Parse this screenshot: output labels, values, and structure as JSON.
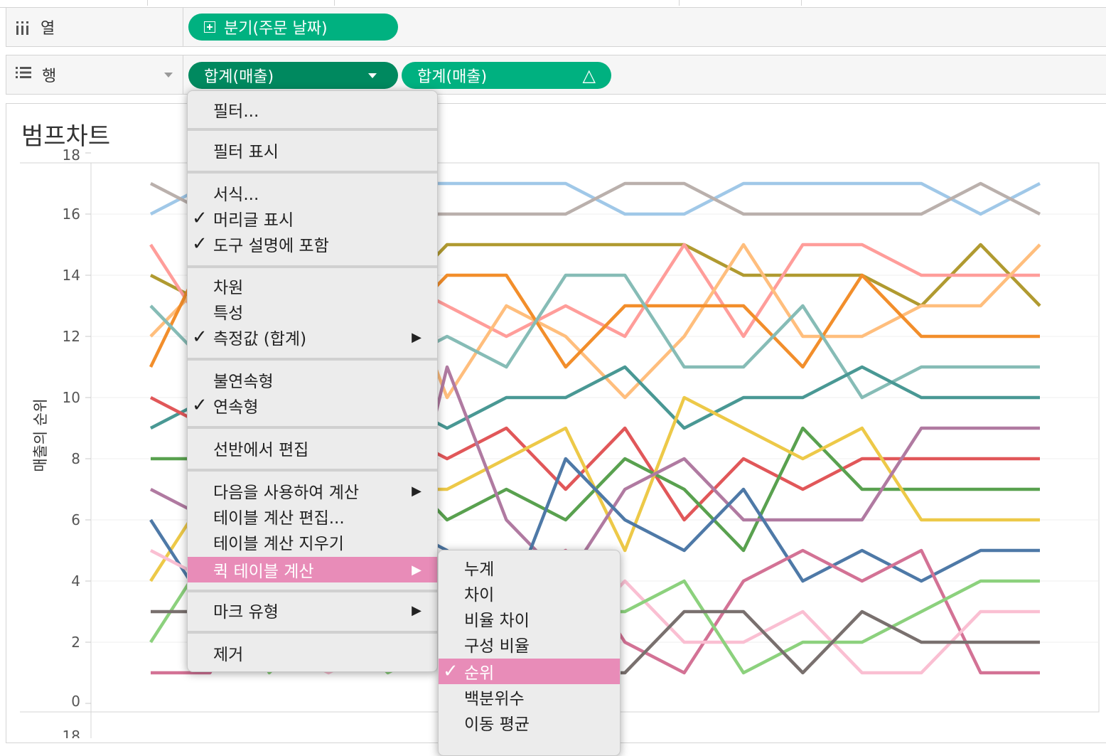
{
  "shelves": {
    "columns": {
      "label": "열",
      "icon": "columns-icon",
      "pill": "분기(주문 날짜)"
    },
    "rows": {
      "label": "행",
      "icon": "rows-icon",
      "pill1": "합계(매출)",
      "pill2": "합계(매출)",
      "pill2_mark": "△"
    }
  },
  "view": {
    "title": "범프차트",
    "ytitle": "매출의 순위",
    "next_pane_tick": "18"
  },
  "context_menu": {
    "items": [
      {
        "label": "필터...",
        "checked": false,
        "submenu": false
      },
      {
        "label": "필터 표시",
        "checked": false,
        "submenu": false
      },
      {
        "label": "서식...",
        "checked": false,
        "submenu": false
      },
      {
        "label": "머리글 표시",
        "checked": true,
        "submenu": false
      },
      {
        "label": "도구 설명에 포함",
        "checked": true,
        "submenu": false
      },
      {
        "label": "차원",
        "checked": false,
        "submenu": false
      },
      {
        "label": "특성",
        "checked": false,
        "submenu": false
      },
      {
        "label": "측정값 (합계)",
        "checked": true,
        "submenu": true
      },
      {
        "label": "불연속형",
        "checked": false,
        "submenu": false
      },
      {
        "label": "연속형",
        "checked": true,
        "submenu": false
      },
      {
        "label": "선반에서 편집",
        "checked": false,
        "submenu": false
      },
      {
        "label": "다음을 사용하여 계산",
        "checked": false,
        "submenu": true
      },
      {
        "label": "테이블 계산 편집...",
        "checked": false,
        "submenu": false
      },
      {
        "label": "테이블 계산 지우기",
        "checked": false,
        "submenu": false
      },
      {
        "label": "퀵 테이블 계산",
        "checked": false,
        "submenu": true,
        "highlighted": true
      },
      {
        "label": "마크 유형",
        "checked": false,
        "submenu": true
      },
      {
        "label": "제거",
        "checked": false,
        "submenu": false
      }
    ],
    "check_glyph": "✓",
    "arrow_glyph": "▶"
  },
  "quick_calc_submenu": {
    "items": [
      {
        "label": "누계",
        "checked": false
      },
      {
        "label": "차이",
        "checked": false
      },
      {
        "label": "비율 차이",
        "checked": false
      },
      {
        "label": "구성 비율",
        "checked": false
      },
      {
        "label": "순위",
        "checked": true,
        "highlighted": true
      },
      {
        "label": "백분위수",
        "checked": false
      },
      {
        "label": "이동 평균",
        "checked": false
      }
    ]
  },
  "chart_data": {
    "type": "line",
    "title": "범프차트",
    "xlabel": "",
    "ylabel": "매출의 순위",
    "ylim": [
      0,
      18
    ],
    "yticks": [
      "0",
      "2",
      "4",
      "6",
      "8",
      "10",
      "12",
      "14",
      "16",
      "18"
    ],
    "grid": true,
    "x": [
      1,
      2,
      3,
      4,
      5,
      6,
      7,
      8,
      9,
      10,
      11,
      12,
      13,
      14,
      15,
      16
    ],
    "series": [
      {
        "color": "#a0c8e8",
        "values": [
          16,
          17,
          17,
          17,
          17,
          17,
          17,
          17,
          16,
          16,
          17,
          17,
          17,
          17,
          16,
          17
        ]
      },
      {
        "color": "#bab0ac",
        "values": [
          17,
          16,
          16,
          16,
          16,
          16,
          16,
          16,
          17,
          17,
          16,
          16,
          16,
          16,
          17,
          16
        ]
      },
      {
        "color": "#b09a30",
        "values": [
          14,
          13,
          14,
          13,
          13,
          15,
          15,
          15,
          15,
          15,
          14,
          14,
          14,
          13,
          15,
          13
        ]
      },
      {
        "color": "#ff9d9a",
        "values": [
          15,
          12,
          13,
          12,
          14,
          13,
          12,
          13,
          12,
          15,
          12,
          15,
          15,
          14,
          14,
          14
        ]
      },
      {
        "color": "#ffbe7d",
        "values": [
          12,
          14,
          12,
          14,
          15,
          10,
          13,
          12,
          10,
          12,
          15,
          12,
          12,
          13,
          13,
          15
        ]
      },
      {
        "color": "#f28e2b",
        "values": [
          11,
          15,
          15,
          15,
          12,
          14,
          14,
          11,
          13,
          13,
          13,
          11,
          14,
          12,
          12,
          12
        ]
      },
      {
        "color": "#86bcb6",
        "values": [
          13,
          11,
          11,
          11,
          11,
          12,
          11,
          14,
          14,
          11,
          11,
          13,
          10,
          11,
          11,
          11
        ]
      },
      {
        "color": "#499894",
        "values": [
          9,
          10,
          10,
          10,
          10,
          9,
          10,
          10,
          11,
          9,
          10,
          10,
          11,
          10,
          10,
          10
        ]
      },
      {
        "color": "#e15759",
        "values": [
          10,
          9,
          9,
          9,
          9,
          8,
          9,
          7,
          9,
          6,
          8,
          7,
          8,
          8,
          8,
          8
        ]
      },
      {
        "color": "#59a14f",
        "values": [
          8,
          8,
          8,
          8,
          8,
          6,
          7,
          6,
          8,
          7,
          5,
          9,
          7,
          7,
          7,
          7
        ]
      },
      {
        "color": "#edc948",
        "values": [
          4,
          7,
          7,
          7,
          7,
          7,
          8,
          9,
          5,
          10,
          9,
          8,
          9,
          6,
          6,
          6
        ]
      },
      {
        "color": "#b07aa1",
        "values": [
          7,
          6,
          6,
          6,
          3,
          11,
          6,
          4,
          7,
          8,
          6,
          6,
          6,
          9,
          9,
          9
        ]
      },
      {
        "color": "#4e79a7",
        "values": [
          6,
          3,
          5,
          5,
          6,
          5,
          3,
          8,
          6,
          5,
          7,
          4,
          5,
          4,
          5,
          5
        ]
      },
      {
        "color": "#d37295",
        "values": [
          1,
          1,
          5,
          5,
          5,
          4,
          4,
          5,
          2,
          1,
          4,
          5,
          4,
          5,
          1,
          1
        ]
      },
      {
        "color": "#fabfd2",
        "values": [
          5,
          4,
          2,
          1,
          2,
          2,
          2,
          2,
          4,
          2,
          2,
          3,
          1,
          1,
          3,
          3
        ]
      },
      {
        "color": "#8cd17d",
        "values": [
          2,
          5,
          1,
          3,
          1,
          2,
          1,
          3,
          3,
          4,
          1,
          2,
          2,
          3,
          4,
          4
        ]
      },
      {
        "color": "#79706e",
        "values": [
          3,
          3,
          3,
          3,
          3,
          3,
          2,
          1,
          1,
          3,
          3,
          1,
          3,
          2,
          2,
          2
        ]
      }
    ]
  }
}
